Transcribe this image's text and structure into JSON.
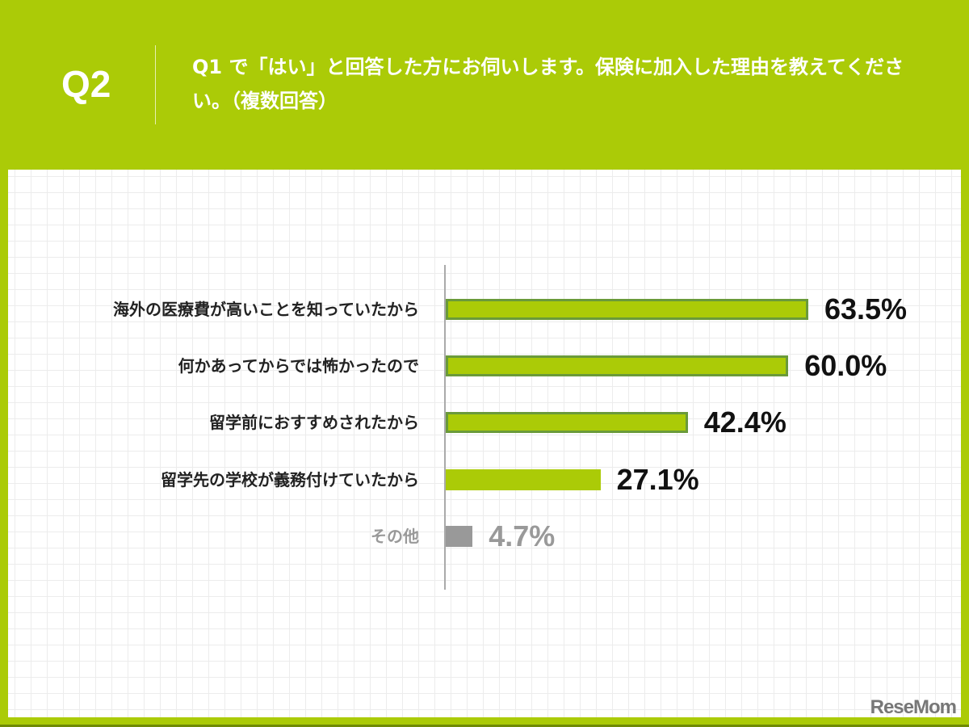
{
  "header": {
    "question_number": "Q2",
    "question_text": "Q1 で「はい」と回答した方にお伺いします。保険に加入した理由を教えてください。（複数回答）"
  },
  "colors": {
    "brand_green": "#abcb07",
    "bar_outline": "#6a9a3a",
    "other_grey": "#999999"
  },
  "logo": {
    "text": "ReseMom"
  },
  "chart_data": {
    "type": "bar",
    "orientation": "horizontal",
    "title": "Q1 で「はい」と回答した方にお伺いします。保険に加入した理由を教えてください。（複数回答）",
    "categories": [
      "海外の医療費が高いことを知っていたから",
      "何かあってからでは怖かったので",
      "留学前におすすめされたから",
      "留学先の学校が義務付けていたから",
      "その他"
    ],
    "values": [
      63.5,
      60.0,
      42.4,
      27.1,
      4.7
    ],
    "value_labels": [
      "63.5%",
      "60.0%",
      "42.4%",
      "27.1%",
      "4.7%"
    ],
    "unit": "%",
    "xlabel": "",
    "ylabel": "",
    "xlim": [
      0,
      100
    ],
    "grid": true,
    "legend": null
  }
}
